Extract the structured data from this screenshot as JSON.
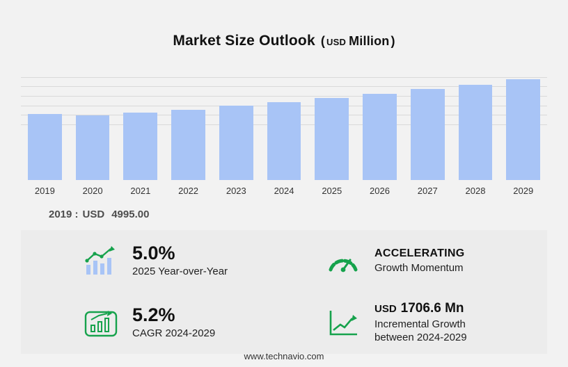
{
  "page": {
    "footer": "www.technavio.com",
    "background": "#f2f2f2"
  },
  "title": {
    "main": "Market Size Outlook",
    "open_paren": "(",
    "currency": "USD",
    "unit": "Million",
    "close_paren": ")"
  },
  "chart_data": {
    "type": "bar",
    "title": "Market Size Outlook (USD Million)",
    "categories": [
      "2019",
      "2020",
      "2021",
      "2022",
      "2023",
      "2024",
      "2025",
      "2026",
      "2027",
      "2028",
      "2029"
    ],
    "values": [
      4995,
      4910,
      5105,
      5340,
      5620,
      5918,
      6214,
      6537,
      6877,
      7234,
      7624.6
    ],
    "ylim": [
      0,
      8000
    ],
    "grid": true,
    "legend": false,
    "bar_color": "#a8c4f6",
    "xlabel": "",
    "ylabel": "USD Million",
    "note": "2019 value labeled as USD 4995.00; later values estimated from bar heights consistent with 5.0% YoY 2025, 5.2% CAGR 2024-2029, incremental growth USD 1706.6 Mn between 2024-2029"
  },
  "annotation": {
    "label": "2019 :",
    "currency": "USD",
    "value": "4995.00"
  },
  "stats": {
    "yoy": {
      "headline": "5.0%",
      "subline": "2025 Year-over-Year"
    },
    "momentum": {
      "headline": "ACCELERATING",
      "subline": "Growth Momentum"
    },
    "cagr": {
      "headline": "5.2%",
      "subline": "CAGR 2024-2029"
    },
    "incremental": {
      "currency": "USD",
      "headline": "1706.6 Mn",
      "subline": "Incremental Growth",
      "subline2": "between 2024-2029"
    }
  },
  "colors": {
    "accent_green": "#16a24c",
    "bar_fill": "#a8c4f6",
    "grid_line": "#d9d9d9",
    "panel_bg": "#ececec",
    "page_bg": "#f2f2f2"
  }
}
